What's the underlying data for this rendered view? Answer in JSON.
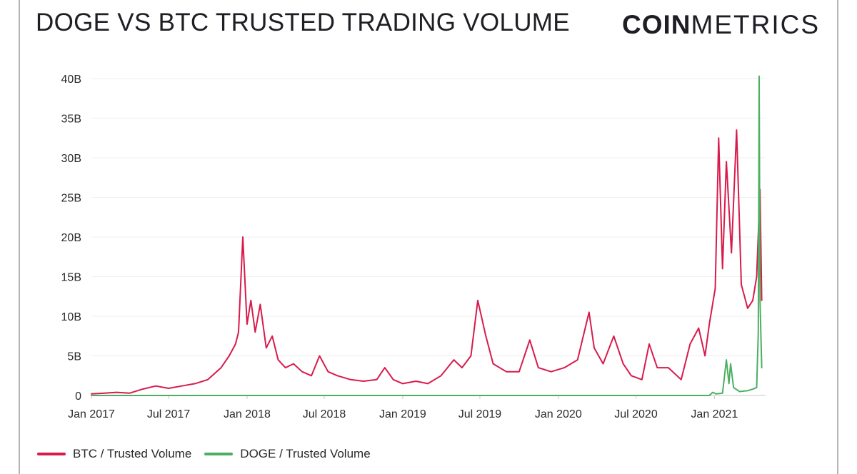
{
  "header": {
    "title": "DOGE VS BTC TRUSTED TRADING VOLUME",
    "logo_bold": "COIN",
    "logo_light": "METRICS"
  },
  "chart_data": {
    "type": "line",
    "title": "DOGE VS BTC TRUSTED TRADING VOLUME",
    "xlabel": "",
    "ylabel": "",
    "ylim": [
      0,
      40
    ],
    "y_unit": "B",
    "y_ticks": [
      "0",
      "5B",
      "10B",
      "15B",
      "20B",
      "25B",
      "30B",
      "35B",
      "40B"
    ],
    "x_ticks": [
      "Jan 2017",
      "Jul 2017",
      "Jan 2018",
      "Jul 2018",
      "Jan 2019",
      "Jul 2019",
      "Jan 2020",
      "Jul 2020",
      "Jan 2021"
    ],
    "grid": true,
    "legend_position": "bottom-left",
    "series": [
      {
        "name": "BTC / Trusted Volume",
        "color": "#d81b4c",
        "points": [
          [
            "2017-01-01",
            0.2
          ],
          [
            "2017-02-01",
            0.3
          ],
          [
            "2017-03-01",
            0.4
          ],
          [
            "2017-04-01",
            0.3
          ],
          [
            "2017-05-01",
            0.8
          ],
          [
            "2017-06-01",
            1.2
          ],
          [
            "2017-07-01",
            0.9
          ],
          [
            "2017-08-01",
            1.2
          ],
          [
            "2017-09-01",
            1.5
          ],
          [
            "2017-10-01",
            2.0
          ],
          [
            "2017-11-01",
            3.5
          ],
          [
            "2017-11-20",
            5.0
          ],
          [
            "2017-12-05",
            6.5
          ],
          [
            "2017-12-12",
            8.0
          ],
          [
            "2017-12-22",
            20.0
          ],
          [
            "2018-01-01",
            9.0
          ],
          [
            "2018-01-10",
            12.0
          ],
          [
            "2018-01-20",
            8.0
          ],
          [
            "2018-02-01",
            11.5
          ],
          [
            "2018-02-15",
            6.0
          ],
          [
            "2018-03-01",
            7.5
          ],
          [
            "2018-03-15",
            4.5
          ],
          [
            "2018-04-01",
            3.5
          ],
          [
            "2018-04-20",
            4.0
          ],
          [
            "2018-05-10",
            3.0
          ],
          [
            "2018-06-01",
            2.5
          ],
          [
            "2018-06-20",
            5.0
          ],
          [
            "2018-07-10",
            3.0
          ],
          [
            "2018-08-01",
            2.5
          ],
          [
            "2018-09-01",
            2.0
          ],
          [
            "2018-10-01",
            1.8
          ],
          [
            "2018-11-01",
            2.0
          ],
          [
            "2018-11-20",
            3.5
          ],
          [
            "2018-12-10",
            2.0
          ],
          [
            "2019-01-01",
            1.5
          ],
          [
            "2019-02-01",
            1.8
          ],
          [
            "2019-03-01",
            1.5
          ],
          [
            "2019-04-01",
            2.5
          ],
          [
            "2019-05-01",
            4.5
          ],
          [
            "2019-05-20",
            3.5
          ],
          [
            "2019-06-10",
            5.0
          ],
          [
            "2019-06-26",
            12.0
          ],
          [
            "2019-07-15",
            7.5
          ],
          [
            "2019-08-01",
            4.0
          ],
          [
            "2019-09-01",
            3.0
          ],
          [
            "2019-10-01",
            3.0
          ],
          [
            "2019-10-26",
            7.0
          ],
          [
            "2019-11-15",
            3.5
          ],
          [
            "2019-12-15",
            3.0
          ],
          [
            "2020-01-15",
            3.5
          ],
          [
            "2020-02-15",
            4.5
          ],
          [
            "2020-03-13",
            10.5
          ],
          [
            "2020-03-25",
            6.0
          ],
          [
            "2020-04-15",
            4.0
          ],
          [
            "2020-05-10",
            7.5
          ],
          [
            "2020-06-01",
            4.0
          ],
          [
            "2020-06-20",
            2.5
          ],
          [
            "2020-07-15",
            2.0
          ],
          [
            "2020-08-01",
            6.5
          ],
          [
            "2020-08-20",
            3.5
          ],
          [
            "2020-09-15",
            3.5
          ],
          [
            "2020-10-15",
            2.0
          ],
          [
            "2020-11-05",
            6.5
          ],
          [
            "2020-11-25",
            8.5
          ],
          [
            "2020-12-10",
            5.0
          ],
          [
            "2020-12-20",
            9.0
          ],
          [
            "2021-01-03",
            13.5
          ],
          [
            "2021-01-11",
            32.5
          ],
          [
            "2021-01-20",
            16.0
          ],
          [
            "2021-01-29",
            29.5
          ],
          [
            "2021-02-10",
            18.0
          ],
          [
            "2021-02-22",
            33.5
          ],
          [
            "2021-03-05",
            14.0
          ],
          [
            "2021-03-20",
            11.0
          ],
          [
            "2021-04-01",
            12.0
          ],
          [
            "2021-04-10",
            15.0
          ],
          [
            "2021-04-18",
            26.0
          ],
          [
            "2021-04-22",
            12.0
          ]
        ]
      },
      {
        "name": "DOGE / Trusted Volume",
        "color": "#4caf62",
        "points": [
          [
            "2017-01-01",
            0.0
          ],
          [
            "2020-12-20",
            0.0
          ],
          [
            "2020-12-28",
            0.4
          ],
          [
            "2021-01-05",
            0.2
          ],
          [
            "2021-01-20",
            0.3
          ],
          [
            "2021-01-29",
            4.5
          ],
          [
            "2021-02-04",
            1.5
          ],
          [
            "2021-02-08",
            4.0
          ],
          [
            "2021-02-15",
            1.0
          ],
          [
            "2021-03-01",
            0.5
          ],
          [
            "2021-03-20",
            0.6
          ],
          [
            "2021-04-01",
            0.8
          ],
          [
            "2021-04-10",
            1.0
          ],
          [
            "2021-04-14",
            8.0
          ],
          [
            "2021-04-16",
            40.3
          ],
          [
            "2021-04-18",
            12.0
          ],
          [
            "2021-04-22",
            3.5
          ]
        ]
      }
    ]
  }
}
